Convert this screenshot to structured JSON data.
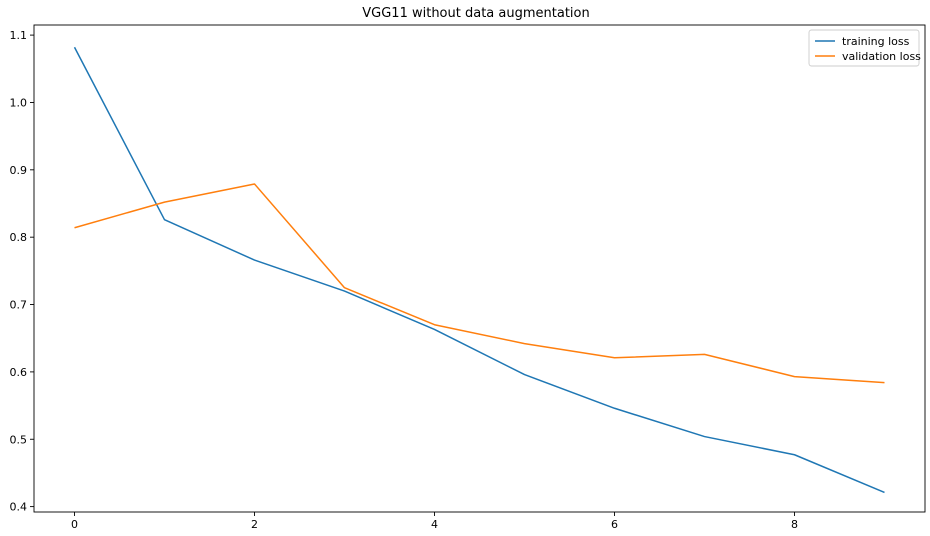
{
  "chart_data": {
    "type": "line",
    "title": "VGG11 without data augmentation",
    "xlabel": "",
    "ylabel": "",
    "x": [
      0,
      1,
      2,
      3,
      4,
      5,
      6,
      7,
      8,
      9
    ],
    "xlim": [
      -0.45,
      9.45
    ],
    "ylim": [
      0.392,
      1.115
    ],
    "xticks": [
      0,
      2,
      4,
      6,
      8
    ],
    "yticks": [
      0.4,
      0.5,
      0.6,
      0.7,
      0.8,
      0.9,
      1.0,
      1.1
    ],
    "ytick_labels": [
      "0.4",
      "0.5",
      "0.6",
      "0.7",
      "0.8",
      "0.9",
      "1.0",
      "1.1"
    ],
    "grid": false,
    "legend_position": "top-right",
    "series": [
      {
        "name": "training loss",
        "color": "#1f77b4",
        "values": [
          1.082,
          0.826,
          0.766,
          0.72,
          0.663,
          0.596,
          0.546,
          0.504,
          0.477,
          0.421
        ]
      },
      {
        "name": "validation loss",
        "color": "#ff7f0e",
        "values": [
          0.814,
          0.852,
          0.879,
          0.725,
          0.67,
          0.642,
          0.621,
          0.626,
          0.593,
          0.584
        ]
      }
    ]
  }
}
